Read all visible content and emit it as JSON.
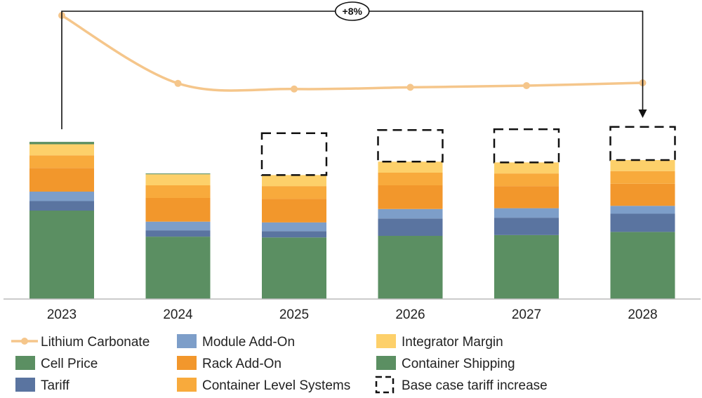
{
  "chart_data": {
    "type": "bar",
    "stacked": true,
    "title": "",
    "xlabel": "",
    "ylabel": "",
    "categories": [
      "2023",
      "2024",
      "2025",
      "2026",
      "2027",
      "2028"
    ],
    "ylim": [
      0,
      100
    ],
    "series": [
      {
        "name": "Cell Price",
        "color": "#5b8f62",
        "values": [
          56,
          39.5,
          39,
          40,
          40.5,
          42.5
        ]
      },
      {
        "name": "Tariff",
        "color": "#5a74a0",
        "values": [
          6,
          4,
          4,
          11,
          11,
          11.5
        ]
      },
      {
        "name": "Module Add-On",
        "color": "#7d9ec9",
        "values": [
          6,
          5.5,
          5.5,
          6,
          6,
          5
        ]
      },
      {
        "name": "Rack Add-On",
        "color": "#f2972c",
        "values": [
          15,
          15,
          15,
          15,
          14,
          14
        ]
      },
      {
        "name": "Container Level Systems",
        "color": "#f8aa3c",
        "values": [
          8,
          8,
          8,
          8,
          8,
          8
        ]
      },
      {
        "name": "Integrator Margin",
        "color": "#fdd06a",
        "values": [
          7,
          7,
          7,
          7,
          7,
          7
        ]
      },
      {
        "name": "Container Shipping",
        "color": "#5b8f62",
        "values": [
          1.5,
          0.5,
          0,
          0,
          0,
          0
        ]
      }
    ],
    "tariff_increase": {
      "name": "Base case tariff increase",
      "values": [
        0,
        0,
        26.5,
        20,
        21,
        21
      ]
    },
    "line_series": {
      "name": "Lithium Carbonate",
      "color": "#f5c68b",
      "values": [
        100,
        39.5,
        34.5,
        36,
        37.5,
        40
      ]
    },
    "annotation": {
      "text": "+8%",
      "from": "2023",
      "to": "2028"
    },
    "legend_position": "bottom"
  },
  "legend": {
    "items": [
      {
        "label": "Lithium Carbonate",
        "kind": "line",
        "color": "#f5c68b"
      },
      {
        "label": "Cell Price",
        "kind": "box",
        "color": "#5b8f62"
      },
      {
        "label": "Tariff",
        "kind": "box",
        "color": "#5a74a0"
      },
      {
        "label": "Module Add-On",
        "kind": "box",
        "color": "#7d9ec9"
      },
      {
        "label": "Rack Add-On",
        "kind": "box",
        "color": "#f2972c"
      },
      {
        "label": "Container Level Systems",
        "kind": "box",
        "color": "#f8aa3c"
      },
      {
        "label": "Integrator Margin",
        "kind": "box",
        "color": "#fdd06a"
      },
      {
        "label": "Container Shipping",
        "kind": "box",
        "color": "#5b8f62"
      },
      {
        "label": "Base case tariff increase",
        "kind": "dashed",
        "color": "#111111"
      }
    ]
  }
}
